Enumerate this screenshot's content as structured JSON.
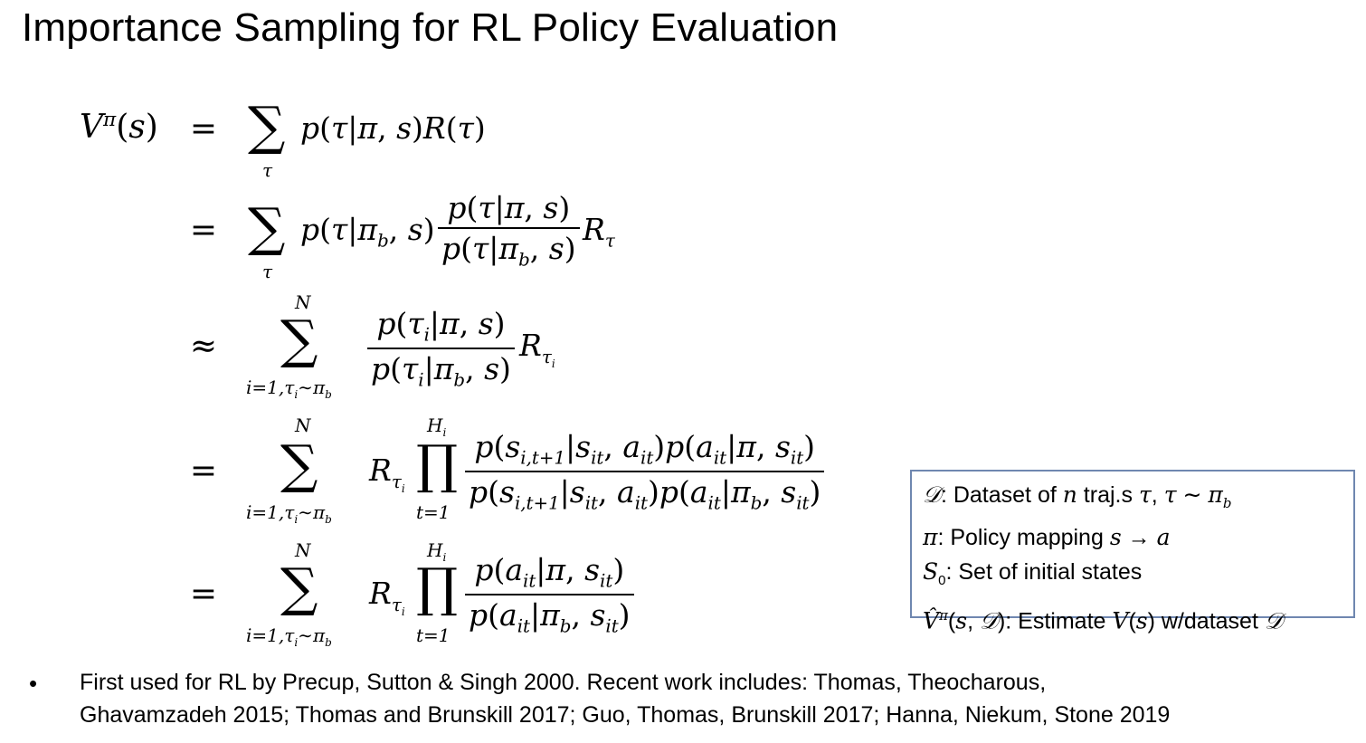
{
  "title": "Importance Sampling for RL Policy Evaluation",
  "equations": {
    "lhs": "V^π(s)",
    "rows": [
      {
        "rel": "=",
        "sum_lower": "τ",
        "sum_upper": "",
        "body": "p(τ|π, s)R(τ)"
      },
      {
        "rel": "=",
        "sum_lower": "τ",
        "sum_upper": "",
        "prefix": "p(τ|π_b, s)",
        "num": "p(τ|π, s)",
        "den": "p(τ|π_b, s)",
        "suffix": "R_τ"
      },
      {
        "rel": "≈",
        "sum_lower": "i=1,τ_i∼π_b",
        "sum_upper": "N",
        "num": "p(τ_i|π, s)",
        "den": "p(τ_i|π_b, s)",
        "suffix": "R_τ_i"
      },
      {
        "rel": "=",
        "sum_lower": "i=1,τ_i∼π_b",
        "sum_upper": "N",
        "prefix": "R_τ_i",
        "prod_lower": "t=1",
        "prod_upper": "H_i",
        "num": "p(s_i,t+1|s_it, a_it)p(a_it|π, s_it)",
        "den": "p(s_i,t+1|s_it, a_it)p(a_it|π_b, s_it)"
      },
      {
        "rel": "=",
        "sum_lower": "i=1,τ_i∼π_b",
        "sum_upper": "N",
        "prefix": "R_τ_i",
        "prod_lower": "t=1",
        "prod_upper": "H_i",
        "num": "p(a_it|π, s_it)",
        "den": "p(a_it|π_b, s_it)"
      }
    ]
  },
  "legend": {
    "items": [
      {
        "symbol": "D",
        "text": ": Dataset of n traj.s τ, τ ∼ π_b"
      },
      {
        "symbol": "π",
        "text": ": Policy mapping s → a"
      },
      {
        "symbol": "S_0",
        "text": ": Set of initial states"
      },
      {
        "symbol": "V̂^π(s, D)",
        "text": ": Estimate V(s) w/dataset D"
      }
    ]
  },
  "note": {
    "bullet": "•",
    "line1": "First used for RL by Precup, Sutton & Singh 2000.  Recent work  includes: Thomas, Theocharous,",
    "line2": "Ghavamzadeh 2015; Thomas and Brunskill 2017; Guo, Thomas, Brunskill 2017; Hanna, Niekum, Stone 2019"
  }
}
